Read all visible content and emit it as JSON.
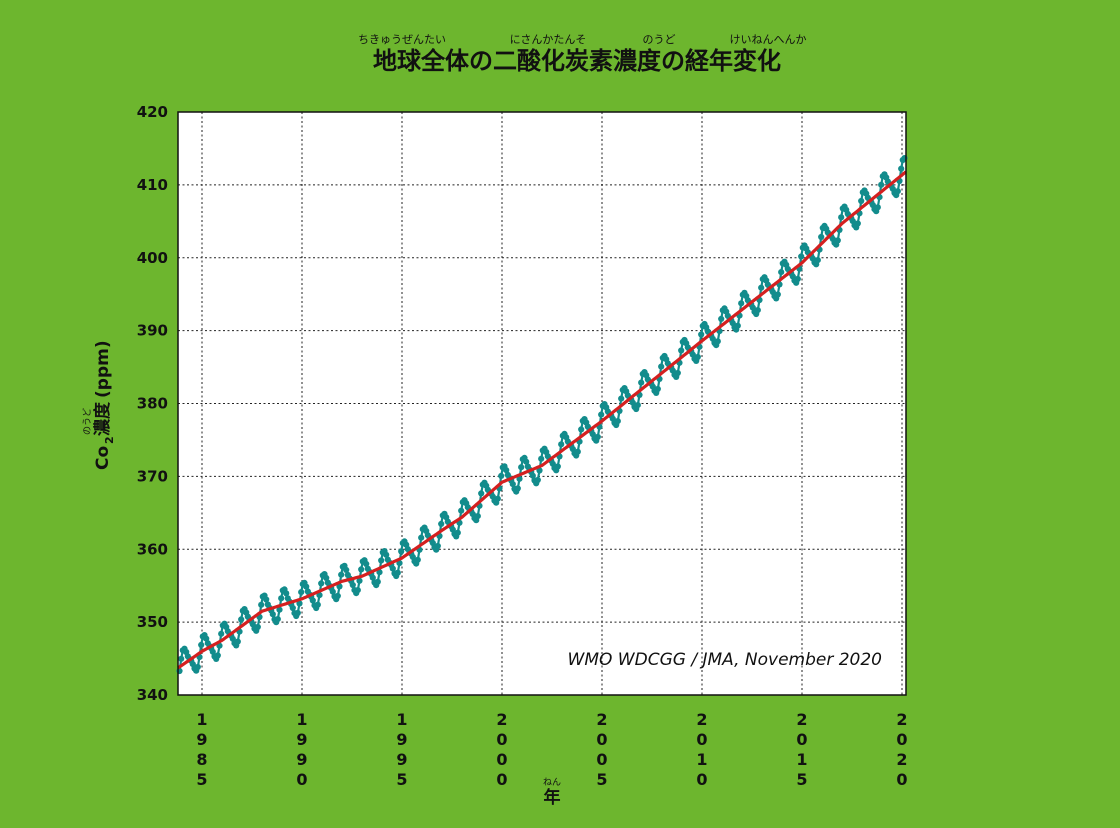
{
  "chart_data": {
    "type": "line",
    "title": "地球全体の二酸化炭素濃度の経年変化",
    "title_ruby": [
      "ちきゅうぜんたい",
      "にさんかたんそ",
      "のうど",
      "けいねんへんか"
    ],
    "ylabel_main": "Co",
    "ylabel_sub": "2",
    "ylabel_kanji": "濃度",
    "ylabel_unit": "(ppm)",
    "ylabel_ruby": "のうど",
    "xlabel": "年",
    "xlabel_ruby": "ねん",
    "annotation": "WMO WDCGG / JMA, November 2020",
    "ylim": [
      340,
      420
    ],
    "xlim": [
      1983.8,
      2020.2
    ],
    "yticks": [
      340,
      350,
      360,
      370,
      380,
      390,
      400,
      410,
      420
    ],
    "xticks": [
      "1985",
      "1990",
      "1995",
      "2000",
      "2005",
      "2010",
      "2015",
      "2020"
    ],
    "grid": true,
    "colors": {
      "monthly": "#128c8c",
      "trend": "#d42020",
      "background": "#6db62e",
      "plot_bg": "#ffffff"
    },
    "series": [
      {
        "role": "monthly",
        "seasonal_amplitude": 2.2,
        "x": [
          1983.875,
          1983.958,
          1984.042,
          1984.125,
          1984.208,
          1984.292,
          1984.375,
          1984.458,
          1984.542,
          1984.625,
          1984.708,
          1984.792,
          1984.875,
          1984.958,
          1985.042,
          1985.125,
          1985.208,
          1985.292,
          1985.375,
          1985.458,
          1985.542,
          1985.625,
          1985.708,
          1985.792,
          1985.875,
          1985.958,
          1986.042,
          1986.125,
          1986.208,
          1986.292,
          1986.375,
          1986.458,
          1986.542,
          1986.625,
          1986.708,
          1986.792,
          1986.875,
          1986.958,
          1987.042,
          1987.125,
          1987.208,
          1987.292,
          1987.375,
          1987.458,
          1987.542,
          1987.625,
          1987.708,
          1987.792,
          1987.875,
          1987.958,
          1988.042,
          1988.125,
          1988.208,
          1988.292,
          1988.375,
          1988.458,
          1988.542,
          1988.625,
          1988.708,
          1988.792,
          1988.875,
          1988.958,
          1989.042,
          1989.125,
          1989.208,
          1989.292,
          1989.375,
          1989.458,
          1989.542,
          1989.625,
          1989.708,
          1989.792,
          1989.875,
          1989.958,
          1990.042,
          1990.125,
          1990.208,
          1990.292,
          1990.375,
          1990.458,
          1990.542,
          1990.625,
          1990.708,
          1990.792,
          1990.875,
          1990.958,
          1991.042,
          1991.125,
          1991.208,
          1991.292,
          1991.375,
          1991.458,
          1991.542,
          1991.625,
          1991.708,
          1991.792,
          1991.875,
          1991.958,
          1992.042,
          1992.125,
          1992.208,
          1992.292,
          1992.375,
          1992.458,
          1992.542,
          1992.625,
          1992.708,
          1992.792,
          1992.875,
          1992.958,
          1993.042,
          1993.125,
          1993.208,
          1993.292,
          1993.375,
          1993.458,
          1993.542,
          1993.625,
          1993.708,
          1993.792,
          1993.875,
          1993.958,
          1994.042,
          1994.125,
          1994.208,
          1994.292,
          1994.375,
          1994.458,
          1994.542,
          1994.625,
          1994.708,
          1994.792,
          1994.875,
          1994.958,
          1995.042,
          1995.125,
          1995.208,
          1995.292,
          1995.375,
          1995.458,
          1995.542,
          1995.625,
          1995.708,
          1995.792,
          1995.875,
          1995.958,
          1996.042,
          1996.125,
          1996.208,
          1996.292,
          1996.375,
          1996.458,
          1996.542,
          1996.625,
          1996.708,
          1996.792,
          1996.875,
          1996.958,
          1997.042,
          1997.125,
          1997.208,
          1997.292,
          1997.375,
          1997.458,
          1997.542,
          1997.625,
          1997.708,
          1997.792,
          1997.875,
          1997.958,
          1998.042,
          1998.125,
          1998.208,
          1998.292,
          1998.375,
          1998.458,
          1998.542,
          1998.625,
          1998.708,
          1998.792,
          1998.875,
          1998.958,
          1999.042,
          1999.125,
          1999.208,
          1999.292,
          1999.375,
          1999.458,
          1999.542,
          1999.625,
          1999.708,
          1999.792,
          1999.875,
          1999.958,
          2000.042,
          2000.125,
          2000.208,
          2000.292,
          2000.375,
          2000.458,
          2000.542,
          2000.625,
          2000.708,
          2000.792,
          2000.875,
          2000.958,
          2001.042,
          2001.125,
          2001.208,
          2001.292,
          2001.375,
          2001.458,
          2001.542,
          2001.625,
          2001.708,
          2001.792,
          2001.875,
          2001.958,
          2002.042,
          2002.125,
          2002.208,
          2002.292,
          2002.375,
          2002.458,
          2002.542,
          2002.625,
          2002.708,
          2002.792,
          2002.875,
          2002.958,
          2003.042,
          2003.125,
          2003.208,
          2003.292,
          2003.375,
          2003.458,
          2003.542,
          2003.625,
          2003.708,
          2003.792,
          2003.875,
          2003.958,
          2004.042,
          2004.125,
          2004.208,
          2004.292,
          2004.375,
          2004.458,
          2004.542,
          2004.625,
          2004.708,
          2004.792,
          2004.875,
          2004.958,
          2005.042,
          2005.125,
          2005.208,
          2005.292,
          2005.375,
          2005.458,
          2005.542,
          2005.625,
          2005.708,
          2005.792,
          2005.875,
          2005.958,
          2006.042,
          2006.125,
          2006.208,
          2006.292,
          2006.375,
          2006.458,
          2006.542,
          2006.625,
          2006.708,
          2006.792,
          2006.875,
          2006.958,
          2007.042,
          2007.125,
          2007.208,
          2007.292,
          2007.375,
          2007.458,
          2007.542,
          2007.625,
          2007.708,
          2007.792,
          2007.875,
          2007.958,
          2008.042,
          2008.125,
          2008.208,
          2008.292,
          2008.375,
          2008.458,
          2008.542,
          2008.625,
          2008.708,
          2008.792,
          2008.875,
          2008.958,
          2009.042,
          2009.125,
          2009.208,
          2009.292,
          2009.375,
          2009.458,
          2009.542,
          2009.625,
          2009.708,
          2009.792,
          2009.875,
          2009.958,
          2010.042,
          2010.125,
          2010.208,
          2010.292,
          2010.375,
          2010.458,
          2010.542,
          2010.625,
          2010.708,
          2010.792,
          2010.875,
          2010.958,
          2011.042,
          2011.125,
          2011.208,
          2011.292,
          2011.375,
          2011.458,
          2011.542,
          2011.625,
          2011.708,
          2011.792,
          2011.875,
          2011.958,
          2012.042,
          2012.125,
          2012.208,
          2012.292,
          2012.375,
          2012.458,
          2012.542,
          2012.625,
          2012.708,
          2012.792,
          2012.875,
          2012.958,
          2013.042,
          2013.125,
          2013.208,
          2013.292,
          2013.375,
          2013.458,
          2013.542,
          2013.625,
          2013.708,
          2013.792,
          2013.875,
          2013.958,
          2014.042,
          2014.125,
          2014.208,
          2014.292,
          2014.375,
          2014.458,
          2014.542,
          2014.625,
          2014.708,
          2014.792,
          2014.875,
          2014.958,
          2015.042,
          2015.125,
          2015.208,
          2015.292,
          2015.375,
          2015.458,
          2015.542,
          2015.625,
          2015.708,
          2015.792,
          2015.875,
          2015.958,
          2016.042,
          2016.125,
          2016.208,
          2016.292,
          2016.375,
          2016.458,
          2016.542,
          2016.625,
          2016.708,
          2016.792,
          2016.875,
          2016.958,
          2017.042,
          2017.125,
          2017.208,
          2017.292,
          2017.375,
          2017.458,
          2017.542,
          2017.625,
          2017.708,
          2017.792,
          2017.875,
          2017.958,
          2018.042,
          2018.125,
          2018.208,
          2018.292,
          2018.375,
          2018.458,
          2018.542,
          2018.625,
          2018.708,
          2018.792,
          2018.875,
          2018.958,
          2019.042,
          2019.125,
          2019.208,
          2019.292,
          2019.375,
          2019.458,
          2019.542,
          2019.625,
          2019.708,
          2019.792,
          2019.875,
          2019.958,
          2020.042,
          2020.125
        ],
        "trend_x": [
          1983.8,
          1985,
          1986,
          1988,
          1990,
          1992,
          1993,
          1995,
          1997,
          1998,
          2000,
          2002,
          2005,
          2010,
          2015,
          2017,
          2020.2
        ],
        "trend_y": [
          343.7,
          346.0,
          347.5,
          351.5,
          353.2,
          355.6,
          356.3,
          358.8,
          362.6,
          364.4,
          369.2,
          371.5,
          377.6,
          388.6,
          399.3,
          404.7,
          411.8
        ]
      }
    ]
  }
}
